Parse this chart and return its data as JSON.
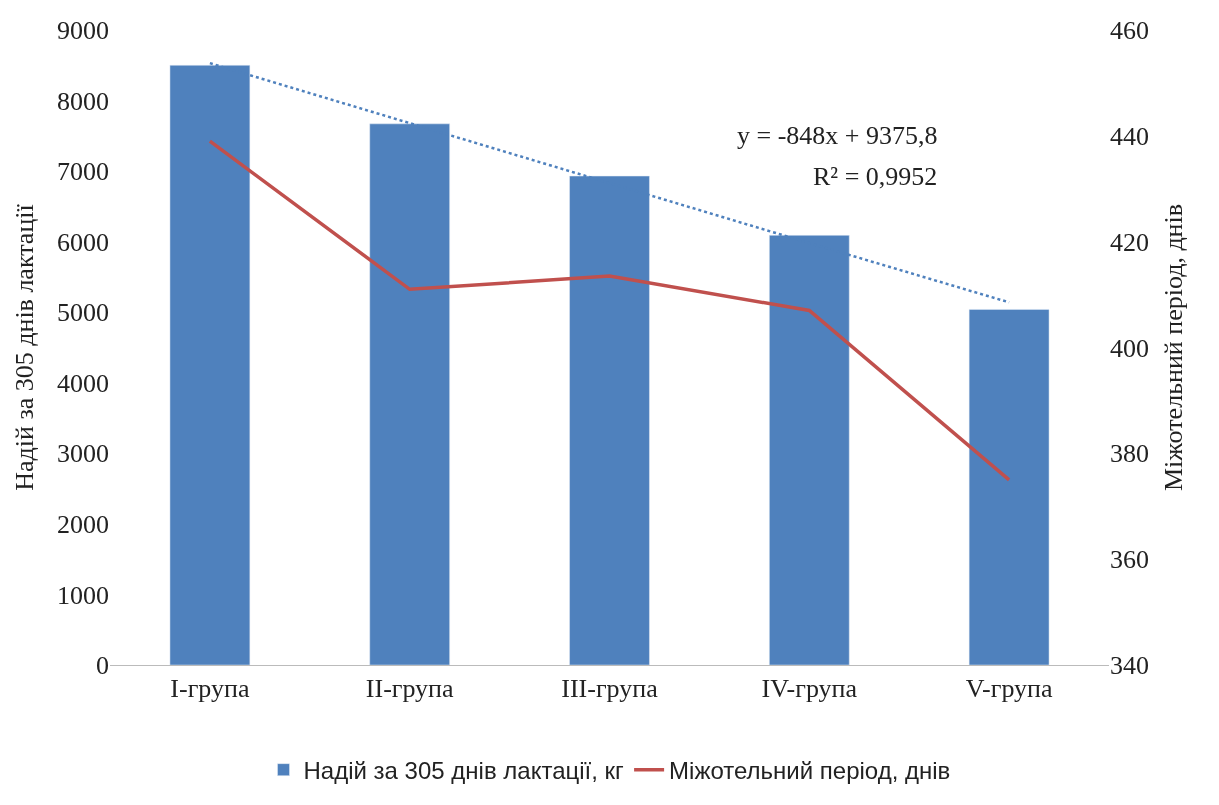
{
  "chart_data": {
    "type": "bar",
    "categories": [
      "I-група",
      "II-група",
      "III-група",
      "IV-група",
      "V-група"
    ],
    "ylabel": "Надій за 305 днів лактації",
    "y2label": "Міжотельний період, днів",
    "ylim": [
      0,
      9000
    ],
    "yticks": [
      0,
      1000,
      2000,
      3000,
      4000,
      5000,
      6000,
      7000,
      8000,
      9000
    ],
    "y2lim": [
      340,
      460
    ],
    "y2ticks": [
      340,
      360,
      380,
      400,
      420,
      440,
      460
    ],
    "series": [
      {
        "name": "Надій за 305 днів лактації, кг",
        "color": "#4f81bd",
        "values": [
          8500,
          7670,
          6930,
          6090,
          5040
        ]
      },
      {
        "name": "Міжотельний період, днів",
        "type": "line",
        "axis": "y2",
        "color": "#c0504d",
        "line_style": "solid",
        "values": [
          439,
          411,
          413.5,
          407,
          375
        ]
      },
      {
        "type": "line",
        "color": "#4f81bd",
        "line_style": "dotted",
        "values": [
          8530,
          7680,
          6830,
          5980,
          5140
        ]
      }
    ],
    "annotations": [
      "y = -848x + 9375,8",
      "R² = 0,9952"
    ],
    "legend": "bottom",
    "grid": false,
    "marker": "none"
  }
}
